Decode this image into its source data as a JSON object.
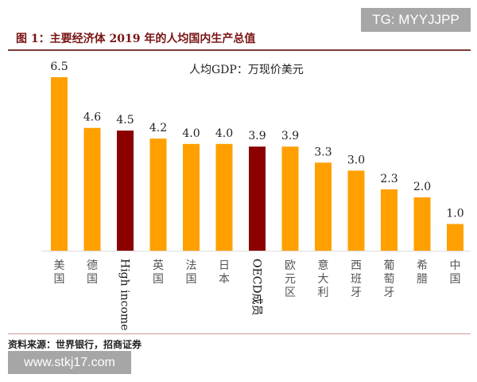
{
  "watermark_top": "TG: MYYJJPP",
  "watermark_bottom": "www.stkj17.com",
  "source": "资料来源：世界银行，招商证券",
  "chart_data": {
    "type": "bar",
    "title": "图 1：主要经济体 2019 年的人均国内生产总值",
    "legend": "人均GDP：万现价美元",
    "categories": [
      "美国",
      "德国",
      "High income",
      "英国",
      "法国",
      "日本",
      "OECD成员",
      "欧元区",
      "意大利",
      "西班牙",
      "葡萄牙",
      "希腊",
      "中国"
    ],
    "values": [
      6.5,
      4.6,
      4.5,
      4.2,
      4.0,
      4.0,
      3.9,
      3.9,
      3.3,
      3.0,
      2.3,
      2.0,
      1.0
    ],
    "labels": [
      "6.5",
      "4.6",
      "4.5",
      "4.2",
      "4.0",
      "4.0",
      "3.9",
      "3.9",
      "3.3",
      "3.0",
      "2.3",
      "2.0",
      "1.0"
    ],
    "highlight": [
      "High income",
      "OECD成员"
    ],
    "colors": {
      "default": "#ffa000",
      "highlight": "#8b0000"
    },
    "ylim": [
      0,
      6.5
    ],
    "grid": false
  }
}
